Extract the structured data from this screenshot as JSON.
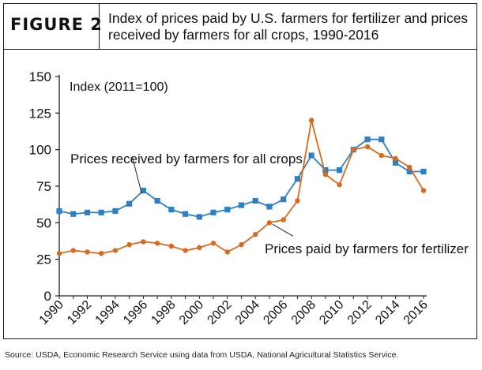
{
  "figure_label": "FIGURE 2",
  "title": "Index of prices paid by U.S. farmers for fertilizer and prices received by farmers for all crops, 1990-2016",
  "source": "Source: USDA, Economic Research Service using data from USDA, National Agricultural Statistics Service.",
  "colors": {
    "crops": "#2f7fc4",
    "fertilizer": "#d86a1e",
    "axis": "#222222",
    "text": "#111111"
  },
  "chart_data": {
    "type": "line",
    "ylabel": "Index (2011=100)",
    "ylim": [
      0,
      150
    ],
    "yticks": [
      0,
      25,
      50,
      75,
      100,
      125,
      150
    ],
    "xticks": [
      1990,
      1992,
      1994,
      1996,
      1998,
      2000,
      2002,
      2004,
      2006,
      2008,
      2010,
      2012,
      2014,
      2016
    ],
    "grid": false,
    "x": [
      1990,
      1991,
      1992,
      1993,
      1994,
      1995,
      1996,
      1997,
      1998,
      1999,
      2000,
      2001,
      2002,
      2003,
      2004,
      2005,
      2006,
      2007,
      2008,
      2009,
      2010,
      2011,
      2012,
      2013,
      2014,
      2015,
      2016
    ],
    "series": [
      {
        "name": "Prices received by farmers for all crops",
        "marker": "square",
        "values": [
          58,
          56,
          57,
          57,
          58,
          63,
          72,
          65,
          59,
          56,
          54,
          57,
          59,
          62,
          65,
          61,
          66,
          80,
          96,
          86,
          86,
          100,
          107,
          107,
          91,
          85,
          85
        ]
      },
      {
        "name": "Prices paid by farmers for fertilizer",
        "marker": "circle",
        "values": [
          29,
          31,
          30,
          29,
          31,
          35,
          37,
          36,
          34,
          31,
          33,
          36,
          30,
          35,
          42,
          50,
          52,
          65,
          120,
          83,
          76,
          100,
          102,
          96,
          94,
          88,
          72
        ]
      }
    ]
  }
}
